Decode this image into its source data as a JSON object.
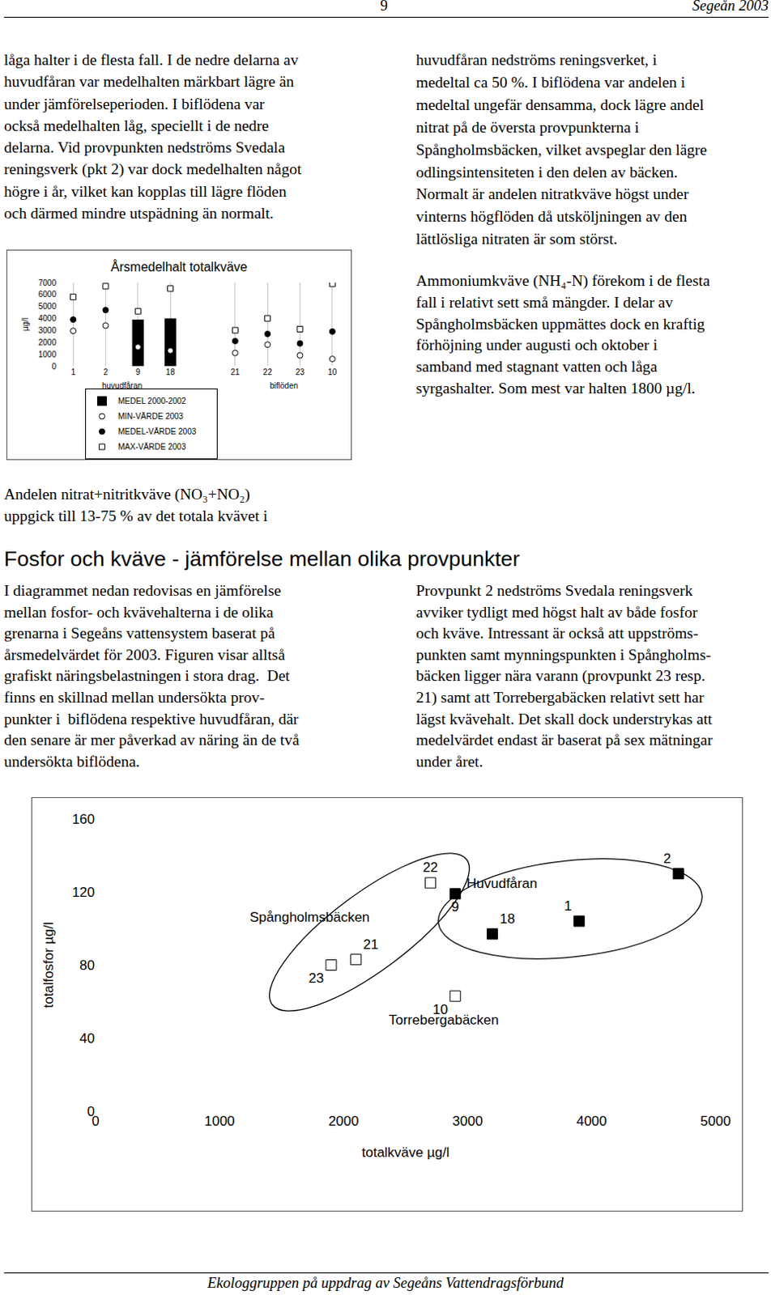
{
  "header": {
    "page": "9",
    "title": "Segeån 2003"
  },
  "text_blocks": {
    "column_left_top": {
      "lines": [
        "låga halter i de flesta fall. I de nedre delarna av",
        "huvudfåran var medelhalten märkbart lägre än",
        "under jämförelseperioden. I biflödena var",
        "också medelhalten låg, speciellt i de nedre",
        "delarna. Vid provpunkten nedströms Svedala",
        "reningsverk (pkt 2) var dock medelhalten något",
        "högre i år, vilket kan kopplas till lägre flöden",
        "och därmed mindre utspädning än normalt."
      ]
    },
    "column_right_top": {
      "lines": [
        "huvudfåran nedströms reningsverket, i",
        "medeltal ca 50 %. I biflödena var andelen i",
        "medeltal ungefär densamma, dock lägre andel",
        "nitrat på de översta provpunkterna i",
        "Spångholmsbäcken, vilket avspeglar den lägre",
        "odlingsintensiteten i den delen av bäcken.",
        "Normalt är andelen nitratkväve högst under",
        "vinterns högflöden då utsköljningen av den",
        "lättlösliga nitraten är som störst."
      ]
    },
    "column_right_ammonium": {
      "lines": [
        "Ammoniumkväve (NH₄-N) förekom i de flesta",
        "fall i relativt sett små mängder. I delar av",
        "Spångholmsbäcken uppmättes dock en kraftig",
        "förhöjning under augusti och oktober i",
        "samband med stagnant vatten och låga",
        "syrgashalter. Som mest var halten 1800 µg/l."
      ]
    },
    "column_left_nitrate": {
      "lines": [
        "Andelen nitrat+nitritkväve (NO₃+NO₂)",
        "uppgick till 13-75 % av det totala kvävet i"
      ]
    },
    "section_left": {
      "lines": [
        "I diagrammet nedan redovisas en jämförelse",
        "mellan fosfor- och kvävehalterna i de olika",
        "grenarna i Segeåns vattensystem baserat på",
        "årsmedelvärdet för 2003. Figuren visar alltså",
        "grafiskt näringsbelastningen i stora drag.  Det",
        "finns en skillnad mellan undersökta prov-",
        "punkter i  biflödena respektive huvudfåran, där",
        "den senare är mer påverkad av näring än de två",
        "undersökta biflödena."
      ]
    },
    "section_right": {
      "lines": [
        "Provpunkt 2 nedströms Svedala reningsverk",
        "avviker tydligt med högst halt av både fosfor",
        "och kväve. Intressant är också att uppströms-",
        "punkten samt mynningspunkten i Spångholms-",
        "bäcken ligger nära varann (provpunkt 23 resp.",
        "21) samt att Torrebergabäcken relativt sett har",
        "lägst kvävehalt. Det skall dock understrykas att",
        "medelvärdet endast är baserat på sex mätningar",
        "under året."
      ]
    }
  },
  "heading": {
    "text": "Fosfor och kväve - jämförelse mellan olika provpunkter"
  },
  "footer": {
    "text": "Ekologgruppen på uppdrag av Segeåns Vattendragsförbund"
  },
  "chart_data": [
    {
      "type": "bar",
      "title": "Årsmedelhalt totalkväve",
      "y_label": "µg/l",
      "categories": [
        "1",
        "2",
        "9",
        "18",
        null,
        "21",
        "22",
        "23",
        "10"
      ],
      "groups": [
        {
          "label": "huvudfåran",
          "from": "1",
          "to": "18"
        },
        {
          "label": "biflöden",
          "from": "21",
          "to": "10"
        }
      ],
      "series": [
        {
          "name": "MEDEL 2000-2002",
          "type": "bar",
          "color": "#000000",
          "values": [
            null,
            null,
            3900,
            4000,
            null,
            null,
            null,
            null,
            null
          ]
        },
        {
          "name": "MIN-VÄRDE 2003",
          "type": "scatter",
          "marker": "open-circle",
          "color": "#000000",
          "values": [
            2950,
            3400,
            1600,
            1300,
            null,
            1100,
            1800,
            900,
            600
          ]
        },
        {
          "name": "MEDEL-VÄRDE 2003",
          "type": "scatter",
          "marker": "circle",
          "color": "#000000",
          "values": [
            3900,
            4700,
            2900,
            3200,
            null,
            2100,
            2700,
            1900,
            2900
          ]
        },
        {
          "name": "MAX-VÄRDE 2003",
          "type": "scatter",
          "marker": "open-square",
          "color": "#000000",
          "values": [
            5800,
            6700,
            4600,
            6500,
            null,
            3000,
            4000,
            3100,
            6900
          ]
        }
      ],
      "ylim": [
        0,
        7000
      ],
      "yticks": [
        0,
        1000,
        2000,
        3000,
        4000,
        5000,
        6000,
        7000
      ],
      "grid": true,
      "legend": "bottom"
    },
    {
      "type": "scatter",
      "x_label": "totalkväve µg/l",
      "y_label": "totalfosfor µg/l",
      "xlim": [
        0,
        5000
      ],
      "xticks": [
        0,
        1000,
        2000,
        3000,
        4000,
        5000
      ],
      "ylim": [
        0,
        160
      ],
      "yticks": [
        0,
        40,
        80,
        120,
        160
      ],
      "series": [
        {
          "name": "Huvudfåran",
          "marker": "square",
          "color": "#000000",
          "labels": [
            "1",
            "2",
            "9",
            "18"
          ],
          "x": [
            3900,
            4700,
            2900,
            3200
          ],
          "y": [
            104,
            130,
            119,
            97
          ]
        },
        {
          "name": "Spångholmsbäcken",
          "marker": "open-square",
          "color": "#000000",
          "labels": [
            "21",
            "22",
            "23"
          ],
          "x": [
            2100,
            2700,
            1900
          ],
          "y": [
            83,
            125,
            80
          ]
        },
        {
          "name": "Torrebergabäcken",
          "marker": "open-square",
          "color": "#000000",
          "labels": [
            "10"
          ],
          "x": [
            2900
          ],
          "y": [
            63
          ]
        }
      ]
    }
  ]
}
